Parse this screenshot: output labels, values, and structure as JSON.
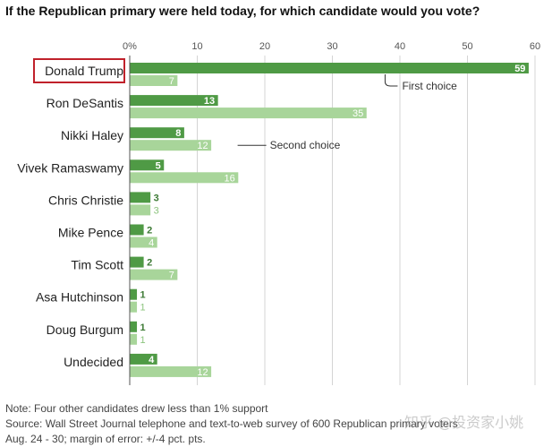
{
  "title": "If the Republican primary were held today, for which candidate would you vote?",
  "chart_data": {
    "type": "bar",
    "orientation": "horizontal",
    "categories": [
      "Donald Trump",
      "Ron DeSantis",
      "Nikki Haley",
      "Vivek Ramaswamy",
      "Chris Christie",
      "Mike Pence",
      "Tim Scott",
      "Asa Hutchinson",
      "Doug Burgum",
      "Undecided"
    ],
    "series": [
      {
        "name": "First choice",
        "values": [
          59,
          13,
          8,
          5,
          3,
          2,
          2,
          1,
          1,
          4
        ],
        "color": "#4f9a45"
      },
      {
        "name": "Second choice",
        "values": [
          7,
          35,
          12,
          16,
          3,
          4,
          7,
          1,
          1,
          12
        ],
        "color": "#a8d59a"
      }
    ],
    "xticks": [
      "0%",
      "10",
      "20",
      "30",
      "40",
      "50",
      "60"
    ],
    "xlim": [
      0,
      60
    ],
    "grid": true,
    "highlighted_category": "Donald Trump"
  },
  "notes": {
    "line1": "Note: Four other candidates drew less than 1% support",
    "line2": "Source: Wall Street Journal telephone and text-to-web survey of 600 Republican primary voters",
    "line3": "Aug. 24 - 30; margin of error: +/-4 pct. pts."
  },
  "watermark": "知乎 @投资家小姚"
}
